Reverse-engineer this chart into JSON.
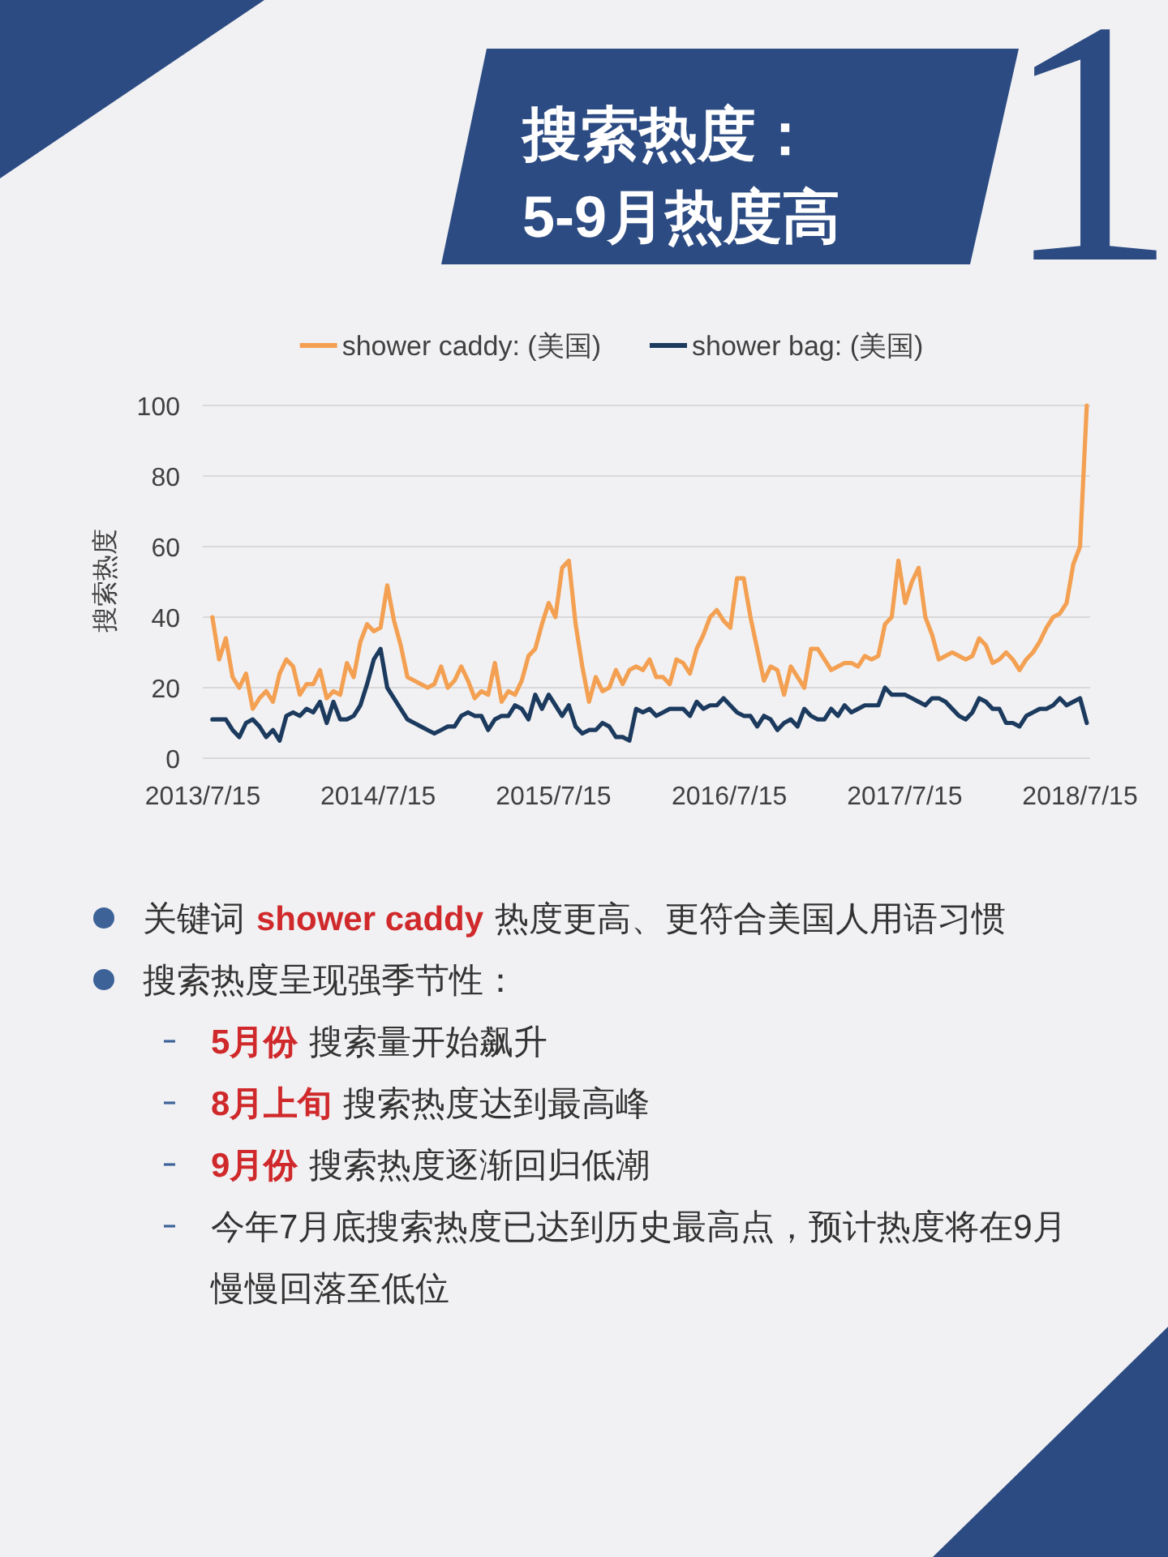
{
  "chart_data": {
    "type": "line",
    "title": "搜索热度：",
    "subtitle": "5-9月热度高",
    "ylabel": "搜索热度",
    "x": [
      "2013-08-04",
      "2013-08-18",
      "2013-09-01",
      "2013-09-15",
      "2013-09-29",
      "2013-10-13",
      "2013-10-27",
      "2013-11-10",
      "2013-11-24",
      "2013-12-08",
      "2013-12-22",
      "2014-01-05",
      "2014-01-19",
      "2014-02-02",
      "2014-02-16",
      "2014-03-02",
      "2014-03-16",
      "2014-03-30",
      "2014-04-13",
      "2014-04-27",
      "2014-05-11",
      "2014-05-25",
      "2014-06-08",
      "2014-06-22",
      "2014-07-06",
      "2014-07-20",
      "2014-08-03",
      "2014-08-17",
      "2014-08-31",
      "2014-09-14",
      "2014-09-28",
      "2014-10-12",
      "2014-10-26",
      "2014-11-09",
      "2014-11-23",
      "2014-12-07",
      "2014-12-21",
      "2015-01-04",
      "2015-01-18",
      "2015-02-01",
      "2015-02-15",
      "2015-03-01",
      "2015-03-15",
      "2015-03-29",
      "2015-04-12",
      "2015-04-26",
      "2015-05-10",
      "2015-05-24",
      "2015-06-07",
      "2015-06-21",
      "2015-07-05",
      "2015-07-19",
      "2015-08-02",
      "2015-08-16",
      "2015-08-30",
      "2015-09-13",
      "2015-09-27",
      "2015-10-11",
      "2015-10-25",
      "2015-11-08",
      "2015-11-22",
      "2015-12-06",
      "2015-12-20",
      "2016-01-03",
      "2016-01-17",
      "2016-01-31",
      "2016-02-14",
      "2016-02-28",
      "2016-03-13",
      "2016-03-27",
      "2016-04-10",
      "2016-04-24",
      "2016-05-08",
      "2016-05-22",
      "2016-06-05",
      "2016-06-19",
      "2016-07-03",
      "2016-07-17",
      "2016-07-31",
      "2016-08-14",
      "2016-08-28",
      "2016-09-11",
      "2016-09-25",
      "2016-10-09",
      "2016-10-23",
      "2016-11-06",
      "2016-11-20",
      "2016-12-04",
      "2016-12-18",
      "2017-01-01",
      "2017-01-15",
      "2017-01-29",
      "2017-02-12",
      "2017-02-26",
      "2017-03-12",
      "2017-03-26",
      "2017-04-09",
      "2017-04-23",
      "2017-05-07",
      "2017-05-21",
      "2017-06-04",
      "2017-06-18",
      "2017-07-02",
      "2017-07-16",
      "2017-07-30",
      "2017-08-13",
      "2017-08-27",
      "2017-09-10",
      "2017-09-24",
      "2017-10-08",
      "2017-10-22",
      "2017-11-05",
      "2017-11-19",
      "2017-12-03",
      "2017-12-17",
      "2017-12-31",
      "2018-01-14",
      "2018-01-28",
      "2018-02-11",
      "2018-02-25",
      "2018-03-11",
      "2018-03-25",
      "2018-04-08",
      "2018-04-22",
      "2018-05-06",
      "2018-05-20",
      "2018-06-03",
      "2018-06-17",
      "2018-07-01",
      "2018-07-15",
      "2018-07-29"
    ],
    "series": [
      {
        "name": "shower caddy: (美国)",
        "color": "#f3a052",
        "values": [
          40,
          28,
          34,
          23,
          20,
          24,
          14,
          17,
          19,
          16,
          24,
          28,
          26,
          18,
          21,
          21,
          25,
          17,
          19,
          18,
          27,
          23,
          33,
          38,
          36,
          37,
          49,
          39,
          32,
          23,
          22,
          21,
          20,
          21,
          26,
          20,
          22,
          26,
          22,
          17,
          19,
          18,
          27,
          16,
          19,
          18,
          22,
          29,
          31,
          38,
          44,
          40,
          54,
          56,
          38,
          26,
          16,
          23,
          19,
          20,
          25,
          21,
          25,
          26,
          25,
          28,
          23,
          23,
          21,
          28,
          27,
          24,
          31,
          35,
          40,
          42,
          39,
          37,
          51,
          51,
          40,
          31,
          22,
          26,
          25,
          18,
          26,
          23,
          20,
          31,
          31,
          28,
          25,
          26,
          27,
          27,
          26,
          29,
          28,
          29,
          38,
          40,
          56,
          44,
          50,
          54,
          40,
          35,
          28,
          29,
          30,
          29,
          28,
          29,
          34,
          32,
          27,
          28,
          30,
          28,
          25,
          28,
          30,
          33,
          37,
          40,
          41,
          44,
          55,
          60,
          100
        ]
      },
      {
        "name": "shower bag: (美国)",
        "color": "#1b3a5e",
        "values": [
          11,
          11,
          11,
          8,
          6,
          10,
          11,
          9,
          6,
          8,
          5,
          12,
          13,
          12,
          14,
          13,
          16,
          10,
          16,
          11,
          11,
          12,
          15,
          21,
          28,
          31,
          20,
          17,
          14,
          11,
          10,
          9,
          8,
          7,
          8,
          9,
          9,
          12,
          13,
          12,
          12,
          8,
          11,
          12,
          12,
          15,
          14,
          11,
          18,
          14,
          18,
          15,
          12,
          15,
          9,
          7,
          8,
          8,
          10,
          9,
          6,
          6,
          5,
          14,
          13,
          14,
          12,
          13,
          14,
          14,
          14,
          12,
          16,
          14,
          15,
          15,
          17,
          15,
          13,
          12,
          12,
          9,
          12,
          11,
          8,
          10,
          11,
          9,
          14,
          12,
          11,
          11,
          14,
          12,
          15,
          13,
          14,
          15,
          15,
          15,
          20,
          18,
          18,
          18,
          17,
          16,
          15,
          17,
          17,
          16,
          14,
          12,
          11,
          13,
          17,
          16,
          14,
          14,
          10,
          10,
          9,
          12,
          13,
          14,
          14,
          15,
          17,
          15,
          16,
          17,
          10
        ]
      }
    ],
    "xlim": [
      "2013-07-15",
      "2018-08-05"
    ],
    "xticks": [
      {
        "value": "2013-07-15",
        "label": "2013/7/15"
      },
      {
        "value": "2014-07-15",
        "label": "2014/7/15"
      },
      {
        "value": "2015-07-15",
        "label": "2015/7/15"
      },
      {
        "value": "2016-07-15",
        "label": "2016/7/15"
      },
      {
        "value": "2017-07-15",
        "label": "2017/7/15"
      },
      {
        "value": "2018-07-15",
        "label": "2018/7/15"
      }
    ],
    "ylim": [
      0,
      100
    ],
    "yticks": [
      0,
      20,
      40,
      60,
      80,
      100
    ],
    "grid": "y",
    "legend": "top",
    "annotations": [
      "1",
      "关键词",
      "shower caddy",
      "热度更高、更符合美国人用语习惯",
      "搜索热度呈现强季节性：",
      "5月份",
      "搜索量开始飙升",
      "8月上旬",
      "搜索热度达到最高峰",
      "9月份",
      "搜索热度逐渐回归低潮",
      "今年7月底搜索热度已达到历史最高点，预计热度将在9月慢慢回落至低位"
    ]
  }
}
